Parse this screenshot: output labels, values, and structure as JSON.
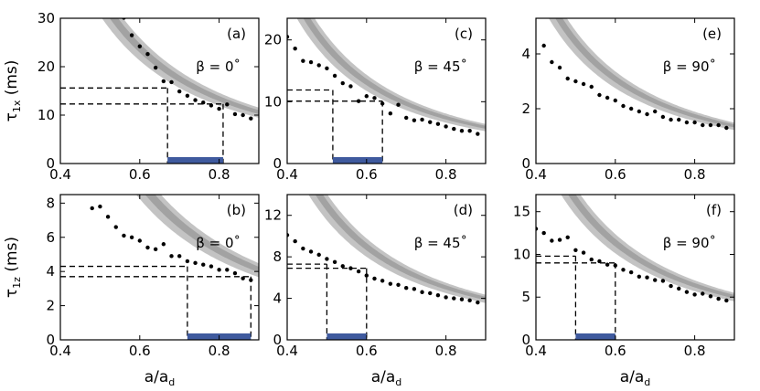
{
  "chart_data": [
    {
      "type": "scatter",
      "panel_label": "(a)",
      "annotation": "β = 0˚",
      "ylabel": "τ1x (ms)",
      "ylabel_main": "τ",
      "ylabel_sub": "1x",
      "ylabel_unit": " (ms)",
      "xlabel": "",
      "xlim": [
        0.4,
        0.9
      ],
      "ylim": [
        0,
        30
      ],
      "xticks": [
        "0.4",
        "0.6",
        "0.8"
      ],
      "yticks": [
        "0",
        "10",
        "20",
        "30"
      ],
      "fit_coef": 8.5,
      "points": {
        "x": [
          0.56,
          0.58,
          0.6,
          0.62,
          0.64,
          0.66,
          0.68,
          0.7,
          0.72,
          0.74,
          0.76,
          0.78,
          0.8,
          0.82,
          0.84,
          0.86,
          0.88
        ],
        "y": [
          30.1,
          26.5,
          24.2,
          22.6,
          19.8,
          17.0,
          16.8,
          14.9,
          14.0,
          13.1,
          12.6,
          12.0,
          11.3,
          12.2,
          10.2,
          10.0,
          9.3
        ]
      },
      "h_dashed": [
        15.6,
        12.3
      ],
      "range": [
        0.67,
        0.81
      ]
    },
    {
      "type": "scatter",
      "panel_label": "(c)",
      "annotation": "β = 45˚",
      "ylabel": "",
      "xlabel": "",
      "xlim": [
        0.4,
        0.9
      ],
      "ylim": [
        0,
        23.5
      ],
      "xticks": [
        "0.4",
        "0.6",
        "0.8"
      ],
      "yticks": [
        "0",
        "10",
        "20"
      ],
      "fit_coef": 4.7,
      "points": {
        "x": [
          0.4,
          0.42,
          0.44,
          0.46,
          0.48,
          0.5,
          0.52,
          0.54,
          0.56,
          0.58,
          0.6,
          0.62,
          0.64,
          0.66,
          0.68,
          0.7,
          0.72,
          0.74,
          0.76,
          0.78,
          0.8,
          0.82,
          0.84,
          0.86,
          0.88
        ],
        "y": [
          20.5,
          18.6,
          16.6,
          16.4,
          15.9,
          15.4,
          14.2,
          13.0,
          12.5,
          10.1,
          10.9,
          10.6,
          9.7,
          8.1,
          9.5,
          7.4,
          7.0,
          7.1,
          6.7,
          6.4,
          6.0,
          5.6,
          5.3,
          5.3,
          4.8
        ]
      },
      "h_dashed": [
        11.9,
        10.1
      ],
      "range": [
        0.515,
        0.64
      ]
    },
    {
      "type": "scatter",
      "panel_label": "(e)",
      "annotation": "β = 90˚",
      "ylabel": "",
      "xlabel": "",
      "xlim": [
        0.4,
        0.9
      ],
      "ylim": [
        0,
        5.3
      ],
      "xticks": [
        "0.4",
        "0.6",
        "0.8"
      ],
      "yticks": [
        "0",
        "2",
        "4"
      ],
      "fit_coef": 1.1,
      "points": {
        "x": [
          0.42,
          0.44,
          0.46,
          0.48,
          0.5,
          0.52,
          0.54,
          0.56,
          0.58,
          0.6,
          0.62,
          0.64,
          0.66,
          0.68,
          0.7,
          0.72,
          0.74,
          0.76,
          0.78,
          0.8,
          0.82,
          0.84,
          0.86,
          0.88
        ],
        "y": [
          4.3,
          3.7,
          3.5,
          3.1,
          3.0,
          2.9,
          2.8,
          2.5,
          2.4,
          2.3,
          2.1,
          2.0,
          1.9,
          1.8,
          1.9,
          1.7,
          1.6,
          1.6,
          1.5,
          1.5,
          1.4,
          1.4,
          1.4,
          1.3
        ]
      },
      "h_dashed": [],
      "range": []
    },
    {
      "type": "scatter",
      "panel_label": "(b)",
      "annotation": "β = 0˚",
      "ylabel": "τ1z (ms)",
      "ylabel_main": "τ",
      "ylabel_sub": "1z",
      "ylabel_unit": " (ms)",
      "xlabel": "a/ad",
      "xlabel_main": "a/a",
      "xlabel_sub": "d",
      "xlim": [
        0.4,
        0.9
      ],
      "ylim": [
        0,
        8.5
      ],
      "xticks": [
        "0.4",
        "0.6",
        "0.8"
      ],
      "yticks": [
        "0",
        "2",
        "4",
        "6",
        "8"
      ],
      "fit_coef": 3.3,
      "points": {
        "x": [
          0.48,
          0.5,
          0.52,
          0.54,
          0.56,
          0.58,
          0.6,
          0.62,
          0.64,
          0.66,
          0.68,
          0.7,
          0.72,
          0.74,
          0.76,
          0.78,
          0.8,
          0.82,
          0.84,
          0.86,
          0.88
        ],
        "y": [
          7.7,
          7.8,
          7.2,
          6.6,
          6.1,
          6.0,
          5.8,
          5.4,
          5.3,
          5.6,
          4.9,
          4.9,
          4.6,
          4.5,
          4.4,
          4.3,
          4.1,
          4.1,
          3.9,
          3.6,
          3.5
        ]
      },
      "h_dashed": [
        4.3,
        3.7
      ],
      "range": [
        0.72,
        0.88
      ]
    },
    {
      "type": "scatter",
      "panel_label": "(d)",
      "annotation": "β = 45˚",
      "ylabel": "",
      "xlabel": "a/ad",
      "xlabel_main": "a/a",
      "xlabel_sub": "d",
      "xlim": [
        0.4,
        0.9
      ],
      "ylim": [
        0,
        14
      ],
      "xticks": [
        "0.4",
        "0.6",
        "0.8"
      ],
      "yticks": [
        "0",
        "4",
        "8",
        "12"
      ],
      "fit_coef": 3.2,
      "points": {
        "x": [
          0.4,
          0.42,
          0.44,
          0.46,
          0.48,
          0.5,
          0.52,
          0.54,
          0.56,
          0.58,
          0.6,
          0.62,
          0.64,
          0.66,
          0.68,
          0.7,
          0.72,
          0.74,
          0.76,
          0.78,
          0.8,
          0.82,
          0.84,
          0.86,
          0.88
        ],
        "y": [
          10.1,
          9.5,
          8.8,
          8.5,
          8.2,
          7.8,
          7.5,
          7.1,
          6.9,
          6.6,
          6.2,
          5.9,
          5.7,
          5.4,
          5.3,
          5.0,
          4.9,
          4.6,
          4.5,
          4.3,
          4.1,
          4.0,
          3.9,
          3.8,
          3.6
        ]
      },
      "h_dashed": [
        7.3,
        6.9
      ],
      "range": [
        0.5,
        0.6
      ]
    },
    {
      "type": "scatter",
      "panel_label": "(f)",
      "annotation": "β = 90˚",
      "ylabel": "",
      "xlabel": "a/ad",
      "xlabel_main": "a/a",
      "xlabel_sub": "d",
      "xlim": [
        0.4,
        0.9
      ],
      "ylim": [
        0,
        17
      ],
      "xticks": [
        "0.4",
        "0.6",
        "0.8"
      ],
      "yticks": [
        "0",
        "5",
        "10",
        "15"
      ],
      "fit_coef": 4.05,
      "points": {
        "x": [
          0.4,
          0.42,
          0.44,
          0.46,
          0.48,
          0.5,
          0.52,
          0.54,
          0.56,
          0.58,
          0.6,
          0.62,
          0.64,
          0.66,
          0.68,
          0.7,
          0.72,
          0.74,
          0.76,
          0.78,
          0.8,
          0.82,
          0.84,
          0.86,
          0.88
        ],
        "y": [
          13.0,
          12.5,
          11.6,
          11.7,
          12.0,
          10.5,
          10.2,
          9.4,
          9.2,
          8.8,
          8.7,
          8.2,
          7.9,
          7.4,
          7.3,
          7.0,
          6.9,
          6.3,
          6.0,
          5.6,
          5.3,
          5.4,
          5.1,
          4.8,
          4.6
        ]
      },
      "h_dashed": [
        9.8,
        9.0
      ],
      "range": [
        0.5,
        0.6
      ]
    }
  ]
}
